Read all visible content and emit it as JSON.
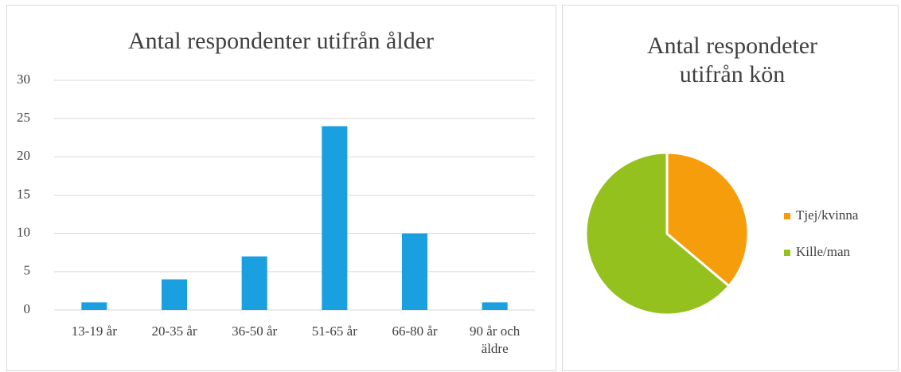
{
  "chart_data": [
    {
      "type": "bar",
      "title": "Antal respondenter utifrån ålder",
      "categories": [
        "13-19 år",
        "20-35 år",
        "36-50 år",
        "51-65 år",
        "66-80 år",
        "90 år och äldre"
      ],
      "values": [
        1,
        4,
        7,
        24,
        10,
        1
      ],
      "color": "#1a9fe0",
      "ylim": [
        0,
        30
      ],
      "yticks": [
        0,
        5,
        10,
        15,
        20,
        25,
        30
      ],
      "grid": true
    },
    {
      "type": "pie",
      "title": "Antal respondeter utifrån kön",
      "categories": [
        "Tjej/kvinna",
        "Kille/man"
      ],
      "values": [
        17,
        30
      ],
      "colors": [
        "#f59d0b",
        "#95c11f"
      ],
      "legend": "right"
    }
  ]
}
